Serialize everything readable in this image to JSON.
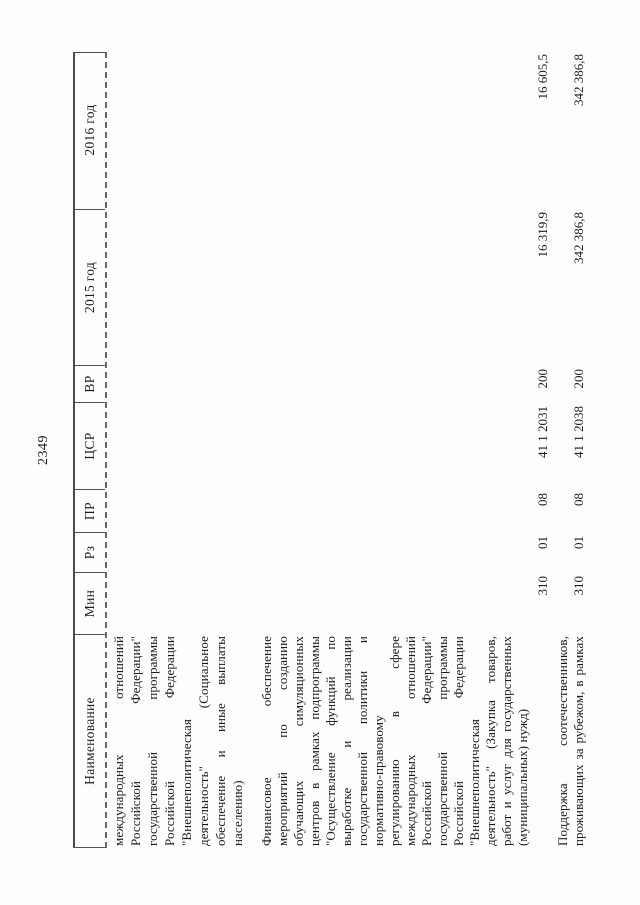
{
  "page": {
    "number": "2349"
  },
  "table": {
    "headers": [
      "Наименование",
      "Мин",
      "Рз",
      "ПР",
      "ЦСР",
      "ВР",
      "2015 год",
      "2016 год"
    ],
    "rows": [
      {
        "lines": [
          "международных отношений",
          "Российской Федерации\"",
          "государственной программы",
          "Российской Федерации",
          "\"Внешнеполитическая",
          "деятельность\" (Социальное",
          "обеспечение и иные выплаты",
          "населению)"
        ],
        "values": []
      },
      {
        "lines": [
          "Финансовое обеспечение",
          "мероприятий по созданию",
          "обучающих симуляционных",
          "центров в рамках подпрограммы",
          "\"Осуществление функций по",
          "выработке и реализации",
          "государственной политики и",
          "нормативно-правовому",
          "регулированию в сфере",
          "международных отношений",
          "Российской Федерации\"",
          "государственной программы",
          "Российской Федерации",
          "\"Внешнеполитическая",
          "деятельность\" (Закупка товаров,",
          "работ и услуг для государственных",
          "(муниципальных) нужд)"
        ],
        "values": [
          "310",
          "01",
          "08",
          "41 1 2031",
          "200",
          "16 319,9",
          "16 605,5"
        ]
      },
      {
        "lines": [
          "Поддержка соотечественников,",
          "проживающих за рубежом, в рамках"
        ],
        "values": [
          "310",
          "01",
          "08",
          "41 1 2038",
          "200",
          "342 386,8",
          "342 386,8"
        ]
      }
    ]
  }
}
